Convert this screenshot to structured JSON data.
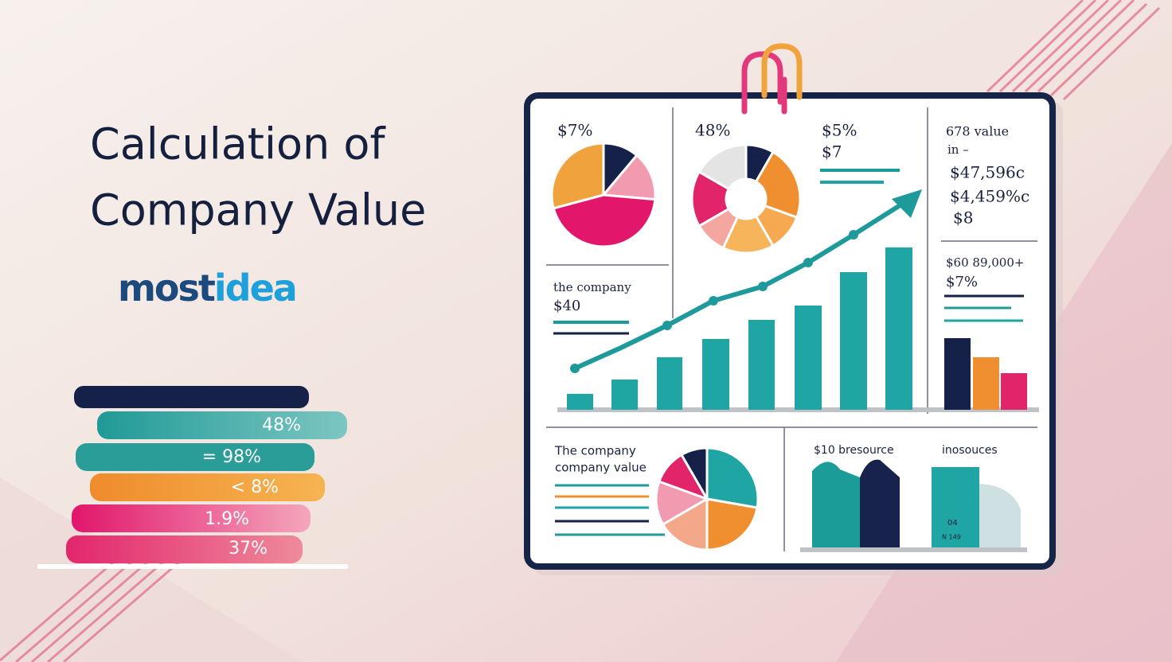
{
  "title": {
    "line1": "Calculation of",
    "line2": "Company Value"
  },
  "brand": {
    "part1": "most",
    "part2": "idea"
  },
  "stack_labels": [
    "48%",
    "= 98%",
    "< 8%",
    "1.9%",
    "37%"
  ],
  "dashboard": {
    "pie_panel": {
      "label": "$7%"
    },
    "donut_panel": {
      "label": "48%"
    },
    "growth_panel": {
      "label1": "$5%",
      "label2": "$7"
    },
    "value_panel": {
      "line1": "678 value",
      "line2": "in –",
      "line3": "$47,596c",
      "line4": "$4,459%c",
      "line5": "$8"
    },
    "small_bars_panel": {
      "line1": "$60 89,000+",
      "line2": "$7%"
    },
    "company_panel": {
      "line1": "the company",
      "line2": "$40"
    },
    "bottom_left": {
      "line1": "The company",
      "line2": "company value"
    },
    "bottom_mid": {
      "label": "$10 bresource"
    },
    "bottom_right": {
      "label": "inosouces",
      "note1": "04",
      "note2": "N 149"
    }
  }
}
